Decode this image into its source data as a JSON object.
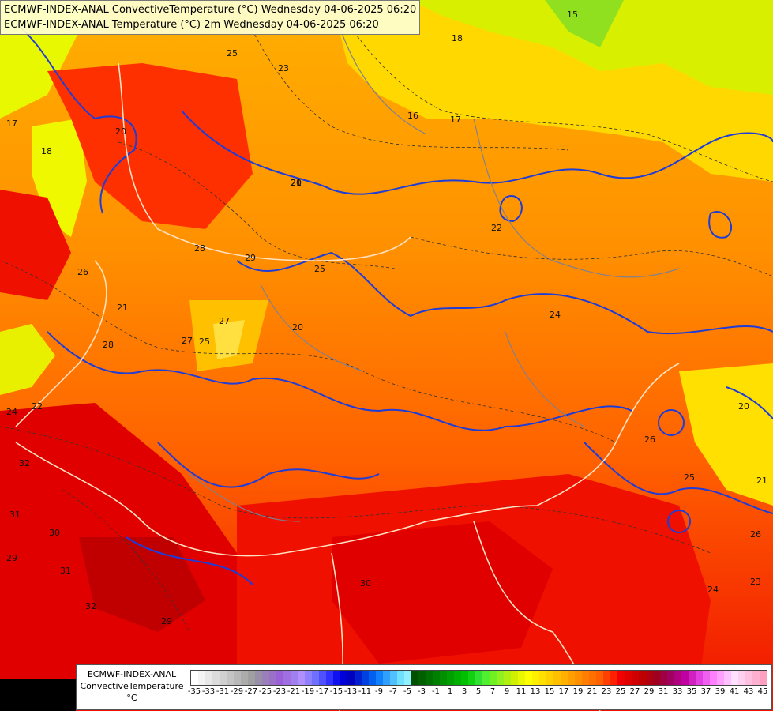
{
  "title_lines": [
    "ECMWF-INDEX-ANAL ConvectiveTemperature (°C) Wednesday 04-06-2025 06:20",
    "ECMWF-INDEX-ANAL Temperature (°C) 2m Wednesday 04-06-2025 06:20"
  ],
  "legend": {
    "line1": "ECMWF-INDEX-ANAL",
    "line2": "ConvectiveTemperature",
    "unit": "°C",
    "tick_labels": [
      "-35",
      "-33",
      "-31",
      "-29",
      "-27",
      "-25",
      "-23",
      "-21",
      "-19",
      "-17",
      "-15",
      "-13",
      "-11",
      "-9",
      "-7",
      "-5",
      "-3",
      "-1",
      "1",
      "3",
      "5",
      "7",
      "9",
      "11",
      "13",
      "15",
      "17",
      "19",
      "21",
      "23",
      "25",
      "27",
      "29",
      "31",
      "33",
      "35",
      "37",
      "39",
      "41",
      "43",
      "45"
    ],
    "swatch_colors": [
      "#ffffff",
      "#f4f4f4",
      "#e8e8e8",
      "#dcdcdc",
      "#d0d0d0",
      "#c4c4c4",
      "#b8b8b8",
      "#acacac",
      "#a0a0a0",
      "#9a8fa8",
      "#9a80b8",
      "#9a70c8",
      "#9a60d8",
      "#a070e0",
      "#a080f0",
      "#b090ff",
      "#9080ff",
      "#7070ff",
      "#5050ff",
      "#3030ff",
      "#1010f0",
      "#0000d8",
      "#0000c0",
      "#0020d0",
      "#0040e0",
      "#0060f0",
      "#1080ff",
      "#30a0ff",
      "#50c0ff",
      "#70e0ff",
      "#90f0ff",
      "#005000",
      "#006000",
      "#007000",
      "#008000",
      "#009000",
      "#00a000",
      "#00b000",
      "#00c000",
      "#10d010",
      "#30e030",
      "#50f030",
      "#70f020",
      "#90f020",
      "#b0f010",
      "#d0f000",
      "#e8f800",
      "#ffff00",
      "#fff000",
      "#ffe000",
      "#ffd000",
      "#ffc000",
      "#ffb000",
      "#ffa000",
      "#ff9000",
      "#ff8000",
      "#ff7000",
      "#ff6000",
      "#ff4000",
      "#ff2000",
      "#f00000",
      "#e00000",
      "#d00000",
      "#c00000",
      "#b00010",
      "#a00020",
      "#a00040",
      "#a00060",
      "#b00080",
      "#c000a0",
      "#d020c0",
      "#e040e0",
      "#f060f0",
      "#ff80ff",
      "#ffa0ff",
      "#ffc0ff",
      "#ffe0ff",
      "#ffd0f0",
      "#ffc0e0",
      "#ffb0d0",
      "#ffa0c0"
    ]
  },
  "contour_labels": [
    "15",
    "18",
    "17",
    "16",
    "17",
    "20",
    "25",
    "23",
    "22",
    "21",
    "20",
    "18",
    "28",
    "29",
    "26",
    "27",
    "25",
    "20",
    "21",
    "24",
    "22",
    "24",
    "28",
    "27",
    "26",
    "25",
    "32",
    "31",
    "30",
    "29",
    "29",
    "31",
    "32",
    "30",
    "25",
    "26",
    "21",
    "20",
    "24",
    "23"
  ]
}
